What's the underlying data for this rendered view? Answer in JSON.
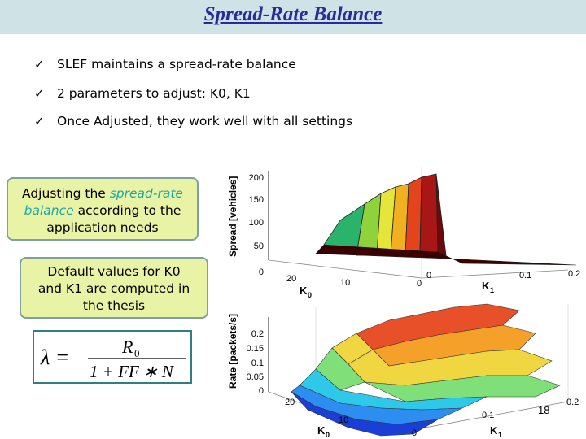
{
  "slide": {
    "title": "Spread-Rate Balance",
    "page_number": "18"
  },
  "bullets": [
    {
      "icon": "check-icon",
      "text": "SLEF maintains a spread-rate balance"
    },
    {
      "icon": "check-icon",
      "text": "2 parameters to adjust: K0, K1"
    },
    {
      "icon": "check-icon",
      "text": "Once Adjusted, they work well with all settings"
    }
  ],
  "callout1": {
    "text_before": "Adjusting the ",
    "highlight_1": "spread-rate",
    "highlight_2": "balance",
    "text_after": " according to the",
    "text_line3": "application needs"
  },
  "callout2": {
    "line1": "Default values for K0",
    "line2": "and K1 are computed in",
    "line3": "the thesis"
  },
  "formula": {
    "lhs": "λ =",
    "numerator": "R",
    "numerator_sub": "0",
    "denominator": "1 + FF ∗ N"
  },
  "plot_spread": {
    "zlabel": "Spread [vehicles]",
    "z_ticks": [
      "200",
      "150",
      "100",
      "50",
      "0"
    ],
    "k0_label": "K",
    "k0_sub": "0",
    "k0_ticks": [
      "20",
      "10",
      "0"
    ],
    "k1_label": "K",
    "k1_sub": "1",
    "k1_ticks": [
      "0",
      "0.1",
      "0.2"
    ],
    "colors": [
      "#2bb36b",
      "#8fd33c",
      "#e6e63a",
      "#f0b020",
      "#e2451e",
      "#a81616",
      "#6b0a0a"
    ]
  },
  "plot_rate": {
    "zlabel": "Rate [packets/s]",
    "z_ticks": [
      "0.2",
      "0.15",
      "0.1",
      "0.05",
      "0"
    ],
    "k0_label": "K",
    "k0_sub": "0",
    "k0_ticks": [
      "20",
      "10",
      "0"
    ],
    "k1_label": "K",
    "k1_sub": "1",
    "k1_ticks": [
      "0.1",
      "0.2"
    ],
    "colors": [
      "#1a3fd6",
      "#2b8ef0",
      "#2ec9e8",
      "#7fe07a",
      "#f0d640",
      "#f5a028",
      "#e8502a"
    ]
  },
  "colors": {
    "title": "#2a2a9c",
    "title_bar": "#cfe3e6",
    "callout_bg": "#e9f3a6",
    "callout_border": "#7fa0a0",
    "highlight": "#18a8a8",
    "formula_border": "#2f7f80"
  }
}
